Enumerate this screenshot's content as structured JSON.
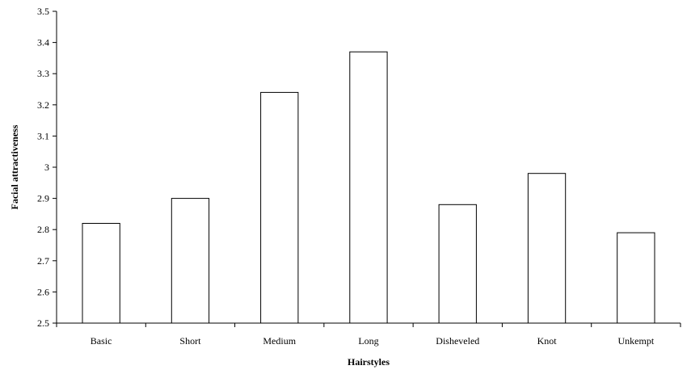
{
  "chart_data": {
    "type": "bar",
    "title": "",
    "xlabel": "Hairstyles",
    "ylabel": "Facial attractiveness",
    "categories": [
      "Basic",
      "Short",
      "Medium",
      "Long",
      "Disheveled",
      "Knot",
      "Unkempt"
    ],
    "values": [
      2.82,
      2.9,
      3.24,
      3.37,
      2.88,
      2.98,
      2.79
    ],
    "ylim": [
      2.5,
      3.5
    ],
    "yticks": [
      "2.5",
      "2.6",
      "2.7",
      "2.8",
      "2.9",
      "3",
      "3.1",
      "3.2",
      "3.3",
      "3.4",
      "3.5"
    ],
    "grid": false,
    "legend": "none",
    "colors": {
      "bar_fill": "#ffffff",
      "bar_stroke": "#000000",
      "axis": "#000000"
    }
  }
}
